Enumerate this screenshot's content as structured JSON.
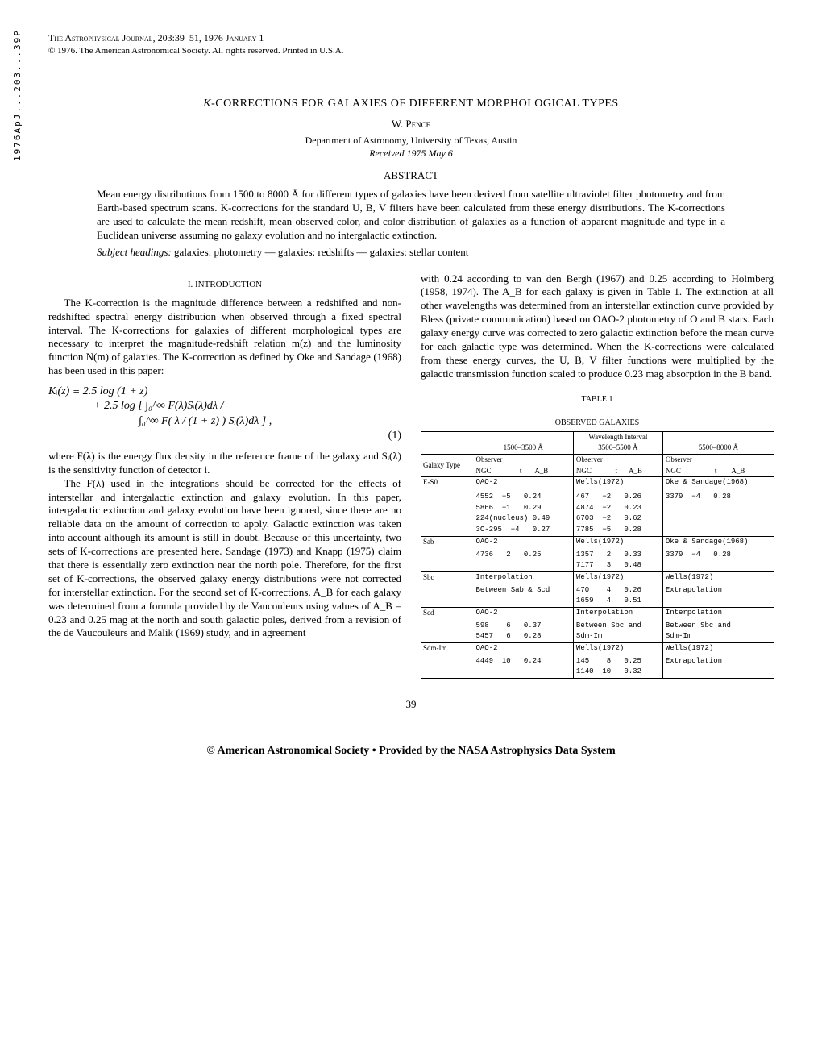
{
  "bibcode": "1976ApJ...203...39P",
  "journal_line": "The Astrophysical Journal, 203:39–51, 1976 January 1",
  "copyright_line": "© 1976. The American Astronomical Society. All rights reserved. Printed in U.S.A.",
  "title": "K-CORRECTIONS FOR GALAXIES OF DIFFERENT MORPHOLOGICAL TYPES",
  "author": "W. Pence",
  "affiliation": "Department of Astronomy, University of Texas, Austin",
  "received": "Received 1975 May 6",
  "abstract_head": "ABSTRACT",
  "abstract_body": "Mean energy distributions from 1500 to 8000 Å for different types of galaxies have been derived from satellite ultraviolet filter photometry and from Earth-based spectrum scans. K-corrections for the standard U, B, V filters have been calculated from these energy distributions. The K-corrections are used to calculate the mean redshift, mean observed color, and color distribution of galaxies as a function of apparent magnitude and type in a Euclidean universe assuming no galaxy evolution and no intergalactic extinction.",
  "subject_label": "Subject headings:",
  "subject_body": " galaxies: photometry — galaxies: redshifts — galaxies: stellar content",
  "section1": "I. INTRODUCTION",
  "left_para1": "The K-correction is the magnitude difference between a redshifted and non-redshifted spectral energy distribution when observed through a fixed spectral interval. The K-corrections for galaxies of different morphological types are necessary to interpret the magnitude-redshift relation m(z) and the luminosity function N(m) of galaxies. The K-correction as defined by Oke and Sandage (1968) has been used in this paper:",
  "eq_line1": "Kᵢ(z) ≡ 2.5 log (1 + z)",
  "eq_line2": "+ 2.5 log [ ∫₀^∞ F(λ)Sᵢ(λ)dλ /",
  "eq_line3": "∫₀^∞ F( λ / (1 + z) ) Sᵢ(λ)dλ ] ,",
  "eq_num": "(1)",
  "left_para2": "where F(λ) is the energy flux density in the reference frame of the galaxy and Sᵢ(λ) is the sensitivity function of detector i.",
  "left_para3": "The F(λ) used in the integrations should be corrected for the effects of interstellar and intergalactic extinction and galaxy evolution. In this paper, intergalactic extinction and galaxy evolution have been ignored, since there are no reliable data on the amount of correction to apply. Galactic extinction was taken into account although its amount is still in doubt. Because of this uncertainty, two sets of K-corrections are presented here. Sandage (1973) and Knapp (1975) claim that there is essentially zero extinction near the north pole. Therefore, for the first set of K-corrections, the observed galaxy energy distributions were not corrected for interstellar extinction. For the second set of K-corrections, A_B for each galaxy was determined from a formula provided by de Vaucouleurs using values of A_B = 0.23 and 0.25 mag at the north and south galactic poles, derived from a revision of the de Vaucouleurs and Malik (1969) study, and in agreement",
  "right_para1": "with 0.24 according to van den Bergh (1967) and 0.25 according to Holmberg (1958, 1974). The A_B for each galaxy is given in Table 1. The extinction at all other wavelengths was determined from an interstellar extinction curve provided by Bless (private communication) based on OAO-2 photometry of O and B stars. Each galaxy energy curve was corrected to zero galactic extinction before the mean curve for each galactic type was determined. When the K-corrections were calculated from these energy curves, the U, B, V filter functions were multiplied by the galactic transmission function scaled to produce 0.23 mag absorption in the B band.",
  "table_num": "TABLE 1",
  "table_title": "OBSERVED GALAXIES",
  "wav_header": "Wavelength Interval",
  "wav1": "1500–3500 Å",
  "wav2": "3500–5500 Å",
  "wav3": "5500–8000 Å",
  "col_galaxy": "Galaxy Type",
  "col_obs": "Observer",
  "col_ngc": "NGC",
  "col_t": "t",
  "col_ab": "A_B",
  "rows": [
    {
      "type": "E-S0",
      "c1": [
        "OAO-2",
        "",
        "",
        "4552  −5   0.24",
        "5866  −1   0.29",
        "224(nucleus) 0.49",
        "3C-295  −4   0.27"
      ],
      "c2": [
        "Wells(1972)",
        "",
        "",
        "467   −2   0.26",
        "4874  −2   0.23",
        "6703  −2   0.62",
        "7785  −5   0.28"
      ],
      "c3": [
        "Oke & Sandage(1968)",
        "",
        "",
        "3379  −4   0.28"
      ]
    },
    {
      "type": "Sab",
      "c1": [
        "OAO-2",
        "",
        "4736   2   0.25"
      ],
      "c2": [
        "Wells(1972)",
        "",
        "1357   2   0.33",
        "7177   3   0.48"
      ],
      "c3": [
        "Oke & Sandage(1968)",
        "",
        "3379  −4   0.28"
      ]
    },
    {
      "type": "Sbc",
      "c1": [
        "Interpolation",
        "",
        "Between Sab & Scd"
      ],
      "c2": [
        "Wells(1972)",
        "",
        "470    4   0.26",
        "1659   4   0.51"
      ],
      "c3": [
        "Wells(1972)",
        "",
        "Extrapolation"
      ]
    },
    {
      "type": "Scd",
      "c1": [
        "OAO-2",
        "",
        "598    6   0.37",
        "5457   6   0.28"
      ],
      "c2": [
        "Interpolation",
        "",
        "Between Sbc and",
        "Sdm-Im"
      ],
      "c3": [
        "Interpolation",
        "",
        "Between Sbc and",
        "Sdm-Im"
      ]
    },
    {
      "type": "Sdm-Im",
      "c1": [
        "OAO-2",
        "",
        "4449  10   0.24"
      ],
      "c2": [
        "Wells(1972)",
        "",
        "145    8   0.25",
        "1140  10   0.32"
      ],
      "c3": [
        "Wells(1972)",
        "",
        "Extrapolation"
      ]
    }
  ],
  "page_num": "39",
  "footer": "© American Astronomical Society • Provided by the NASA Astrophysics Data System"
}
